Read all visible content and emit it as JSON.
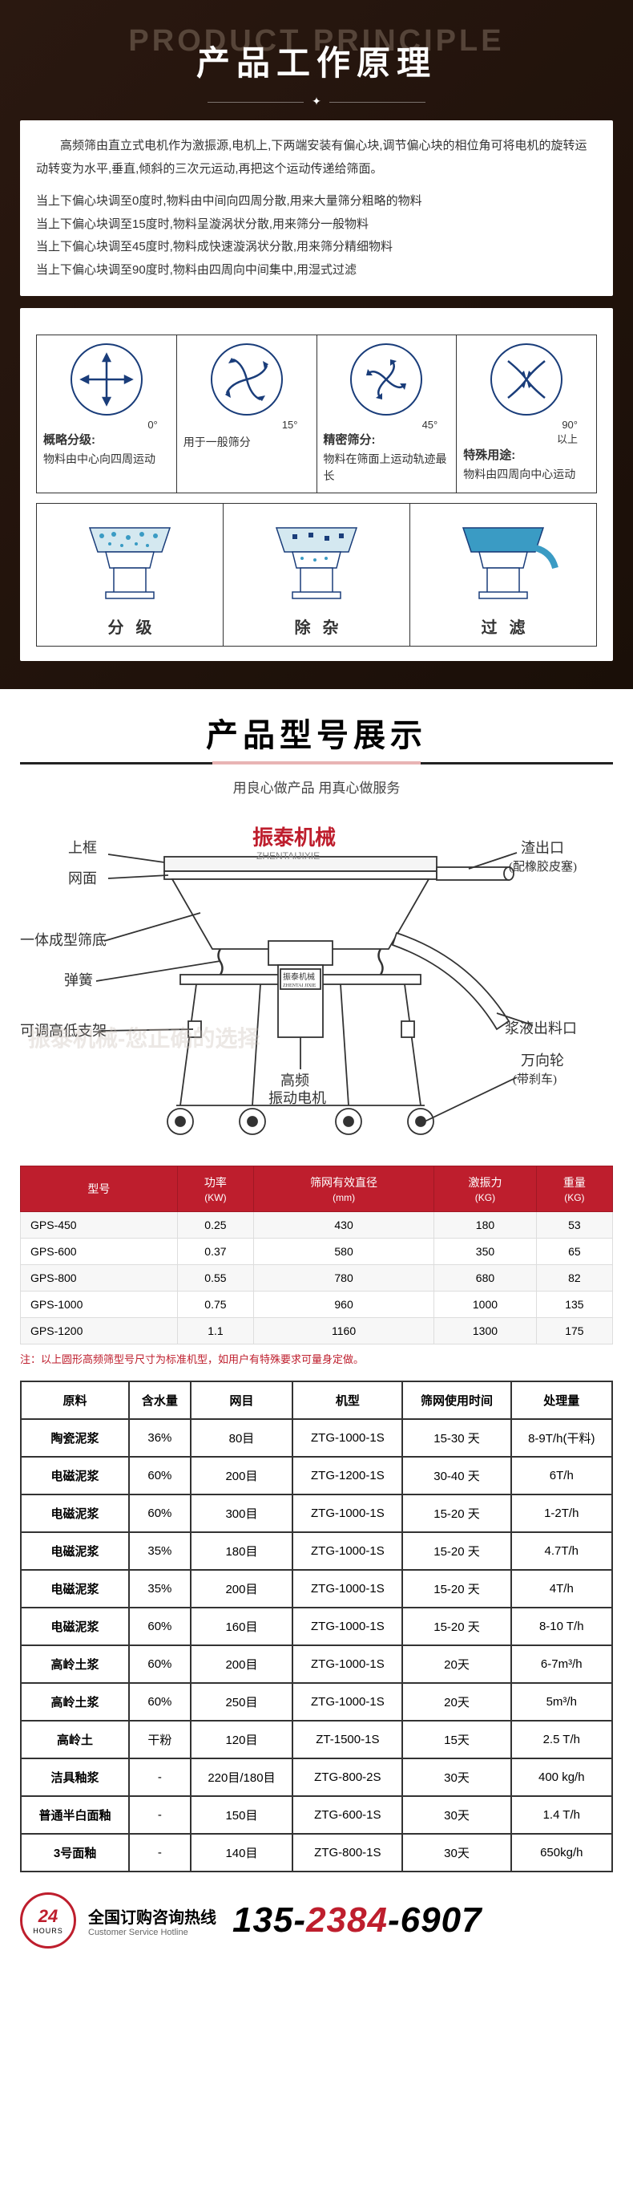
{
  "section1": {
    "title_en": "PRODUCT PRINCIPLE",
    "title_cn": "产品工作原理",
    "intro": "高频筛由直立式电机作为激振源,电机上,下两端安装有偏心块,调节偏心块的相位角可将电机的旋转运动转变为水平,垂直,倾斜的三次元运动,再把这个运动传递给筛面。",
    "specs": [
      "当上下偏心块调至0度时,物料由中间向四周分散,用来大量筛分粗略的物料",
      "当上下偏心块调至15度时,物料呈漩涡状分散,用来筛分一般物料",
      "当上下偏心块调至45度时,物料成快速漩涡状分散,用来筛分精细物料",
      "当上下偏心块调至90度时,物料由四周向中间集中,用湿式过滤"
    ],
    "four_cells": [
      {
        "angle": "0°",
        "head": "概略分级:",
        "desc": "物料由中心向四周运动"
      },
      {
        "angle": "15°",
        "head": "",
        "desc": "用于一般筛分"
      },
      {
        "angle": "45°",
        "head": "精密筛分:",
        "desc": "物料在筛面上运动轨迹最长"
      },
      {
        "angle": "90°\n以上",
        "head": "特殊用途:",
        "desc": "物料由四周向中心运动"
      }
    ],
    "three_labels": [
      "分级",
      "除杂",
      "过滤"
    ]
  },
  "section2": {
    "title": "产品型号展示",
    "subtitle": "用良心做产品 用真心做服务",
    "brand_cn": "振泰机械",
    "brand_en": "ZHENTAIJIXIE",
    "machine_labels": {
      "l1": "上框",
      "l2": "网面",
      "l3": "一体成型筛底",
      "l4": "弹簧",
      "l5": "可调高低支架",
      "r1": "渣出口",
      "r1b": "(配橡胶皮塞)",
      "r2": "浆液出料口",
      "r3": "万向轮",
      "r3b": "(带刹车)",
      "c1": "高频",
      "c2": "振动电机",
      "plate": "振泰机械"
    },
    "watermark": "振泰机械-您正确的选择"
  },
  "table1": {
    "headers": [
      {
        "main": "型号",
        "sub": ""
      },
      {
        "main": "功率",
        "sub": "(KW)"
      },
      {
        "main": "筛网有效直径",
        "sub": "(mm)"
      },
      {
        "main": "激振力",
        "sub": "(KG)"
      },
      {
        "main": "重量",
        "sub": "(KG)"
      }
    ],
    "rows": [
      [
        "GPS-450",
        "0.25",
        "430",
        "180",
        "53"
      ],
      [
        "GPS-600",
        "0.37",
        "580",
        "350",
        "65"
      ],
      [
        "GPS-800",
        "0.55",
        "780",
        "680",
        "82"
      ],
      [
        "GPS-1000",
        "0.75",
        "960",
        "1000",
        "135"
      ],
      [
        "GPS-1200",
        "1.1",
        "1160",
        "1300",
        "175"
      ]
    ],
    "note": "注：以上圆形高频筛型号尺寸为标准机型，如用户有特殊要求可量身定做。"
  },
  "table2": {
    "headers": [
      "原料",
      "含水量",
      "网目",
      "机型",
      "筛网使用时间",
      "处理量"
    ],
    "rows": [
      [
        "陶瓷泥浆",
        "36%",
        "80目",
        "ZTG-1000-1S",
        "15-30 天",
        "8-9T/h(干料)"
      ],
      [
        "电磁泥浆",
        "60%",
        "200目",
        "ZTG-1200-1S",
        "30-40 天",
        "6T/h"
      ],
      [
        "电磁泥浆",
        "60%",
        "300目",
        "ZTG-1000-1S",
        "15-20 天",
        "1-2T/h"
      ],
      [
        "电磁泥浆",
        "35%",
        "180目",
        "ZTG-1000-1S",
        "15-20 天",
        "4.7T/h"
      ],
      [
        "电磁泥浆",
        "35%",
        "200目",
        "ZTG-1000-1S",
        "15-20 天",
        "4T/h"
      ],
      [
        "电磁泥浆",
        "60%",
        "160目",
        "ZTG-1000-1S",
        "15-20 天",
        "8-10 T/h"
      ],
      [
        "高岭土浆",
        "60%",
        "200目",
        "ZTG-1000-1S",
        "20天",
        "6-7m³/h"
      ],
      [
        "高岭土浆",
        "60%",
        "250目",
        "ZTG-1000-1S",
        "20天",
        "5m³/h"
      ],
      [
        "高岭土",
        "干粉",
        "120目",
        "ZT-1500-1S",
        "15天",
        "2.5 T/h"
      ],
      [
        "洁具釉浆",
        "-",
        "220目/180目",
        "ZTG-800-2S",
        "30天",
        "400 kg/h"
      ],
      [
        "普通半白面釉",
        "-",
        "150目",
        "ZTG-600-1S",
        "30天",
        "1.4 T/h"
      ],
      [
        "3号面釉",
        "-",
        "140目",
        "ZTG-800-1S",
        "30天",
        "650kg/h"
      ]
    ]
  },
  "footer": {
    "icon_24": "24",
    "icon_hours": "HOURS",
    "text_cn": "全国订购咨询热线",
    "text_en": "Customer Service Hotline",
    "phone_p1": "135-",
    "phone_p2": "2384",
    "phone_p3": "-6907"
  },
  "colors": {
    "brand_red": "#be1e2d",
    "dark_bg": "#1a0f08",
    "diagram_blue": "#1a3d7a",
    "diagram_cyan": "#3a9bc4"
  }
}
